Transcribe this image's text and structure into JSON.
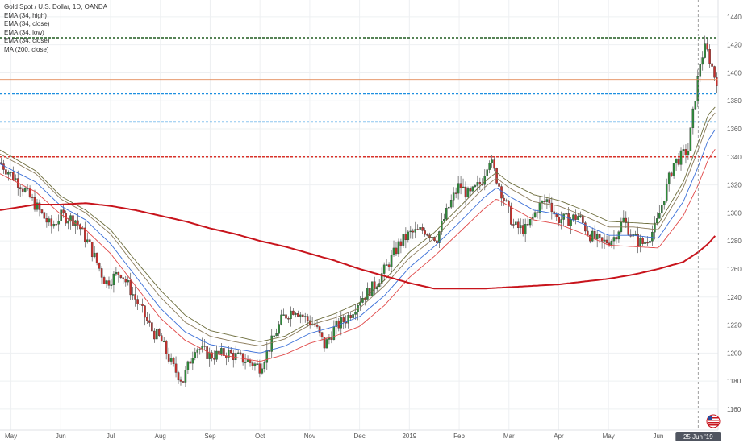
{
  "colors": {
    "background": "#ffffff",
    "grid": "#eef0f2",
    "bull": "#2e8b3a",
    "bear": "#c9302c",
    "wick": "#555555",
    "ema_high": "#8a7a5a",
    "ema_close": "#3a6fd8",
    "ema_low": "#e04848",
    "ema_34_close_2": "#6b6b3a",
    "ma200": "#c8141c",
    "price_line": "#e38b5a",
    "level_green": "#1f5a1f",
    "level_blue": "#1d8fe0",
    "level_red": "#d8322a"
  },
  "legend": [
    "Gold Spot / U.S. Dollar, 1D, OANDA",
    "EMA (34, high)",
    "EMA (34, close)",
    "EMA (34, low)",
    "EMA (34, close)",
    "MA (200, close)"
  ],
  "chart_data": {
    "type": "candlestick",
    "title": "Gold Spot / U.S. Dollar, 1D, OANDA",
    "ylim": [
      1145,
      1452
    ],
    "y_ticks": [
      1160,
      1180,
      1200,
      1220,
      1240,
      1260,
      1280,
      1300,
      1320,
      1340,
      1360,
      1380,
      1400,
      1420,
      1440
    ],
    "x_ticks": [
      "May",
      "Jun",
      "Jul",
      "Aug",
      "Sep",
      "Oct",
      "Nov",
      "Dec",
      "2019",
      "Feb",
      "Mar",
      "Apr",
      "May",
      "Jun"
    ],
    "x_tick_months": [
      0,
      1,
      2,
      3,
      4,
      5,
      6,
      7,
      8,
      9,
      10,
      11,
      12,
      13
    ],
    "x_range_months": [
      -0.22,
      14.2
    ],
    "price_path": [
      [
        -0.22,
        1336
      ],
      [
        0.2,
        1320
      ],
      [
        0.5,
        1305
      ],
      [
        0.8,
        1290
      ],
      [
        1.0,
        1298
      ],
      [
        1.3,
        1295
      ],
      [
        1.6,
        1275
      ],
      [
        1.9,
        1250
      ],
      [
        2.2,
        1258
      ],
      [
        2.4,
        1245
      ],
      [
        2.6,
        1232
      ],
      [
        2.85,
        1215
      ],
      [
        3.0,
        1210
      ],
      [
        3.25,
        1190
      ],
      [
        3.45,
        1180
      ],
      [
        3.7,
        1205
      ],
      [
        4.0,
        1198
      ],
      [
        4.35,
        1200
      ],
      [
        4.7,
        1195
      ],
      [
        5.0,
        1190
      ],
      [
        5.2,
        1205
      ],
      [
        5.45,
        1225
      ],
      [
        5.7,
        1232
      ],
      [
        5.9,
        1225
      ],
      [
        6.1,
        1220
      ],
      [
        6.3,
        1205
      ],
      [
        6.5,
        1218
      ],
      [
        6.75,
        1225
      ],
      [
        7.0,
        1238
      ],
      [
        7.3,
        1248
      ],
      [
        7.55,
        1262
      ],
      [
        7.8,
        1278
      ],
      [
        8.0,
        1285
      ],
      [
        8.3,
        1288
      ],
      [
        8.55,
        1282
      ],
      [
        8.8,
        1305
      ],
      [
        9.0,
        1320
      ],
      [
        9.2,
        1312
      ],
      [
        9.45,
        1322
      ],
      [
        9.6,
        1340
      ],
      [
        9.75,
        1325
      ],
      [
        9.9,
        1310
      ],
      [
        10.1,
        1290
      ],
      [
        10.35,
        1288
      ],
      [
        10.6,
        1305
      ],
      [
        10.8,
        1310
      ],
      [
        10.95,
        1296
      ],
      [
        11.2,
        1295
      ],
      [
        11.4,
        1298
      ],
      [
        11.6,
        1285
      ],
      [
        11.85,
        1278
      ],
      [
        12.1,
        1282
      ],
      [
        12.3,
        1295
      ],
      [
        12.5,
        1282
      ],
      [
        12.7,
        1278
      ],
      [
        12.95,
        1290
      ],
      [
        13.1,
        1310
      ],
      [
        13.3,
        1335
      ],
      [
        13.45,
        1340
      ],
      [
        13.6,
        1345
      ],
      [
        13.75,
        1385
      ],
      [
        13.85,
        1410
      ],
      [
        13.95,
        1418
      ],
      [
        14.05,
        1408
      ],
      [
        14.15,
        1395
      ]
    ],
    "candle_count": 300,
    "series": [
      {
        "name": "EMA (34, high)",
        "color": "#8a7a5a",
        "path": [
          [
            -0.22,
            1342
          ],
          [
            0.5,
            1328
          ],
          [
            1.0,
            1310
          ],
          [
            1.5,
            1300
          ],
          [
            2.0,
            1285
          ],
          [
            2.5,
            1262
          ],
          [
            3.0,
            1240
          ],
          [
            3.5,
            1222
          ],
          [
            4.0,
            1212
          ],
          [
            4.5,
            1208
          ],
          [
            5.0,
            1205
          ],
          [
            5.5,
            1210
          ],
          [
            6.0,
            1220
          ],
          [
            6.5,
            1225
          ],
          [
            7.0,
            1232
          ],
          [
            7.5,
            1248
          ],
          [
            8.0,
            1268
          ],
          [
            8.5,
            1282
          ],
          [
            9.0,
            1300
          ],
          [
            9.5,
            1318
          ],
          [
            9.75,
            1325
          ],
          [
            10.0,
            1318
          ],
          [
            10.5,
            1308
          ],
          [
            11.0,
            1305
          ],
          [
            11.5,
            1298
          ],
          [
            12.0,
            1290
          ],
          [
            12.5,
            1290
          ],
          [
            13.0,
            1288
          ],
          [
            13.5,
            1318
          ],
          [
            13.8,
            1345
          ],
          [
            14.0,
            1365
          ],
          [
            14.15,
            1372
          ]
        ]
      },
      {
        "name": "EMA (34, close)",
        "color": "#3a6fd8",
        "path": [
          [
            -0.22,
            1335
          ],
          [
            0.5,
            1322
          ],
          [
            1.0,
            1305
          ],
          [
            1.5,
            1295
          ],
          [
            2.0,
            1278
          ],
          [
            2.5,
            1255
          ],
          [
            3.0,
            1232
          ],
          [
            3.5,
            1215
          ],
          [
            4.0,
            1206
          ],
          [
            4.5,
            1203
          ],
          [
            5.0,
            1200
          ],
          [
            5.5,
            1205
          ],
          [
            6.0,
            1214
          ],
          [
            6.5,
            1219
          ],
          [
            7.0,
            1226
          ],
          [
            7.5,
            1241
          ],
          [
            8.0,
            1261
          ],
          [
            8.5,
            1276
          ],
          [
            9.0,
            1293
          ],
          [
            9.5,
            1311
          ],
          [
            9.75,
            1318
          ],
          [
            10.0,
            1312
          ],
          [
            10.5,
            1302
          ],
          [
            11.0,
            1299
          ],
          [
            11.5,
            1292
          ],
          [
            12.0,
            1284
          ],
          [
            12.5,
            1284
          ],
          [
            13.0,
            1282
          ],
          [
            13.5,
            1308
          ],
          [
            13.8,
            1333
          ],
          [
            14.0,
            1352
          ],
          [
            14.15,
            1360
          ]
        ]
      },
      {
        "name": "EMA (34, low)",
        "color": "#e04848",
        "path": [
          [
            -0.22,
            1328
          ],
          [
            0.5,
            1315
          ],
          [
            1.0,
            1299
          ],
          [
            1.5,
            1288
          ],
          [
            2.0,
            1271
          ],
          [
            2.5,
            1248
          ],
          [
            3.0,
            1225
          ],
          [
            3.5,
            1209
          ],
          [
            4.0,
            1200
          ],
          [
            4.5,
            1197
          ],
          [
            5.0,
            1194
          ],
          [
            5.5,
            1199
          ],
          [
            6.0,
            1207
          ],
          [
            6.5,
            1212
          ],
          [
            7.0,
            1219
          ],
          [
            7.5,
            1234
          ],
          [
            8.0,
            1254
          ],
          [
            8.5,
            1269
          ],
          [
            9.0,
            1286
          ],
          [
            9.5,
            1303
          ],
          [
            9.75,
            1310
          ],
          [
            10.0,
            1305
          ],
          [
            10.5,
            1295
          ],
          [
            11.0,
            1292
          ],
          [
            11.5,
            1285
          ],
          [
            12.0,
            1277
          ],
          [
            12.5,
            1276
          ],
          [
            13.0,
            1275
          ],
          [
            13.5,
            1298
          ],
          [
            13.8,
            1320
          ],
          [
            14.0,
            1338
          ],
          [
            14.15,
            1346
          ]
        ]
      },
      {
        "name": "EMA (34, close)",
        "color": "#6b6b3a",
        "path": [
          [
            -0.22,
            1345
          ],
          [
            0.5,
            1330
          ],
          [
            1.0,
            1312
          ],
          [
            1.5,
            1302
          ],
          [
            2.0,
            1288
          ],
          [
            2.5,
            1266
          ],
          [
            3.0,
            1245
          ],
          [
            3.5,
            1227
          ],
          [
            4.0,
            1216
          ],
          [
            4.5,
            1212
          ],
          [
            5.0,
            1208
          ],
          [
            5.5,
            1212
          ],
          [
            6.0,
            1222
          ],
          [
            6.5,
            1228
          ],
          [
            7.0,
            1236
          ],
          [
            7.5,
            1252
          ],
          [
            8.0,
            1272
          ],
          [
            8.5,
            1286
          ],
          [
            9.0,
            1304
          ],
          [
            9.5,
            1322
          ],
          [
            9.75,
            1329
          ],
          [
            10.0,
            1322
          ],
          [
            10.5,
            1313
          ],
          [
            11.0,
            1309
          ],
          [
            11.5,
            1302
          ],
          [
            12.0,
            1294
          ],
          [
            12.5,
            1293
          ],
          [
            13.0,
            1292
          ],
          [
            13.5,
            1322
          ],
          [
            13.8,
            1350
          ],
          [
            14.0,
            1370
          ],
          [
            14.15,
            1376
          ]
        ]
      },
      {
        "name": "MA (200, close)",
        "color": "#c8141c",
        "path": [
          [
            -0.22,
            1302
          ],
          [
            0.5,
            1306
          ],
          [
            1.0,
            1306
          ],
          [
            1.5,
            1307
          ],
          [
            2.0,
            1305
          ],
          [
            2.5,
            1302
          ],
          [
            3.0,
            1298
          ],
          [
            3.5,
            1294
          ],
          [
            4.0,
            1289
          ],
          [
            4.5,
            1285
          ],
          [
            5.0,
            1280
          ],
          [
            5.5,
            1276
          ],
          [
            6.0,
            1271
          ],
          [
            6.5,
            1266
          ],
          [
            7.0,
            1260
          ],
          [
            7.5,
            1255
          ],
          [
            8.0,
            1250
          ],
          [
            8.5,
            1246
          ],
          [
            9.0,
            1246
          ],
          [
            9.5,
            1246
          ],
          [
            10.0,
            1247
          ],
          [
            10.5,
            1248
          ],
          [
            11.0,
            1249
          ],
          [
            11.5,
            1251
          ],
          [
            12.0,
            1253
          ],
          [
            12.5,
            1256
          ],
          [
            13.0,
            1260
          ],
          [
            13.5,
            1265
          ],
          [
            13.8,
            1272
          ],
          [
            14.0,
            1278
          ],
          [
            14.15,
            1284
          ]
        ]
      }
    ],
    "levels": [
      {
        "label": "1424.950",
        "value": 1424.95,
        "color": "#1f5a1f"
      },
      {
        "label": "1385.000",
        "value": 1385.0,
        "color": "#1d8fe0"
      },
      {
        "label": "1365.000",
        "value": 1365.0,
        "color": "#1d8fe0"
      },
      {
        "label": "1340.050",
        "value": 1340.05,
        "color": "#d8322a"
      }
    ],
    "current_price": {
      "label": "1395.268",
      "value": 1395.268
    },
    "crosshair_date": "25 Jun '19",
    "crosshair_x": 13.8
  }
}
